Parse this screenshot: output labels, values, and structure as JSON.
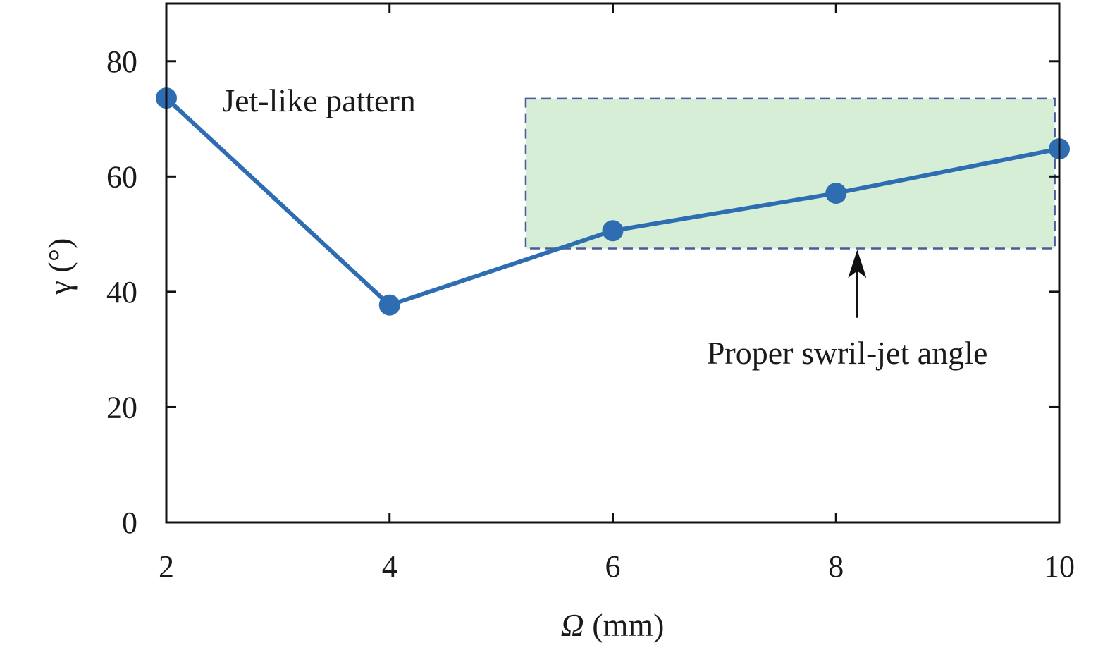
{
  "chart_data": {
    "type": "line",
    "xlabel_symbol": "Ω",
    "xlabel_unit": " (mm)",
    "ylabel": "γ (°)",
    "xlim": [
      2,
      10
    ],
    "ylim": [
      0,
      90
    ],
    "xticks": [
      2,
      4,
      6,
      8,
      10
    ],
    "yticks": [
      0,
      20,
      40,
      60,
      80
    ],
    "grid": false,
    "series": [
      {
        "x": [
          2,
          4,
          6,
          8,
          10
        ],
        "y": [
          73.6,
          37.7,
          50.6,
          57.1,
          64.8
        ],
        "color": "#2f6db3"
      }
    ],
    "region": {
      "x": [
        5.22,
        9.96
      ],
      "y": [
        47.5,
        73.5
      ],
      "fill": "#d6eed6",
      "border": "#4b5a98"
    },
    "annotations": [
      {
        "text": "Jet-like pattern",
        "x": 2.5,
        "y": 73.5
      },
      {
        "text": "Proper swril-jet angle",
        "x": 8.1,
        "y": 29.5,
        "arrow_to": [
          8.19,
          47.3
        ],
        "arrow_from": [
          8.19,
          35.5
        ]
      }
    ]
  }
}
